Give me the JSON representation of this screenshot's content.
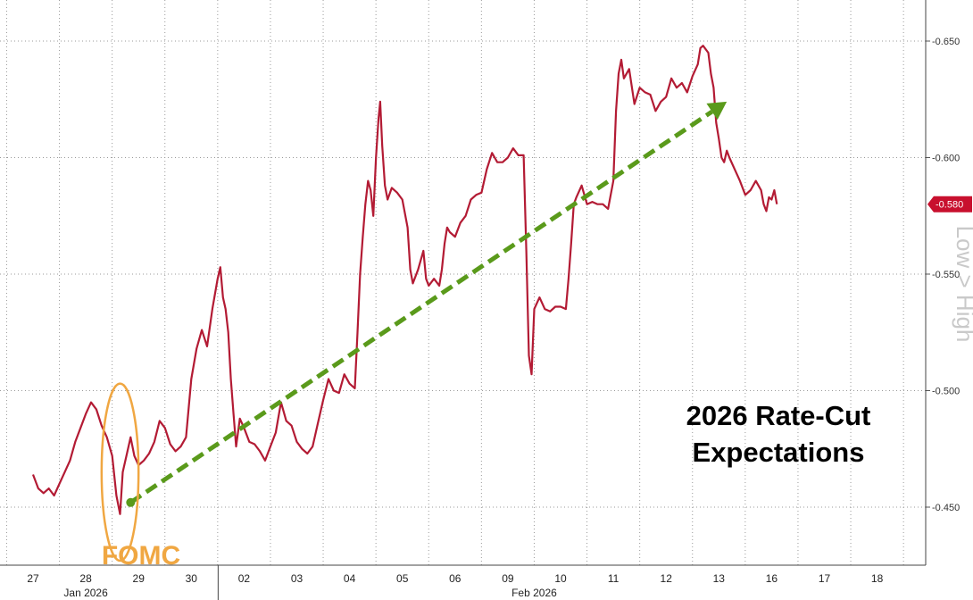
{
  "chart_data": {
    "type": "line",
    "title": [
      "2026 Rate-Cut",
      "Expectations"
    ],
    "annotation": "FOMC",
    "side_label": "Low > High",
    "last_value_label": "-0.580",
    "y_axis": {
      "min": -0.475,
      "max": -0.665,
      "inverted": true,
      "ticks": [
        -0.65,
        -0.6,
        -0.55,
        -0.5,
        -0.45
      ],
      "tick_labels": [
        "-0.650",
        "-0.600",
        "-0.550",
        "-0.500",
        "-0.450"
      ],
      "position": "right"
    },
    "x_axis": {
      "days": [
        "27",
        "28",
        "29",
        "30",
        "02",
        "03",
        "04",
        "05",
        "06",
        "09",
        "10",
        "11",
        "12",
        "13",
        "16",
        "17",
        "18"
      ],
      "months": [
        {
          "label": "Jan 2026",
          "day_index": 1
        },
        {
          "label": "Feb 2026",
          "day_index": 9.5
        }
      ]
    },
    "grid": true,
    "colors": {
      "series": "#b31b34",
      "trend": "#5a9a1b",
      "annotation": "#f0a742",
      "last_label_bg": "#c8102e"
    },
    "series": [
      {
        "points": [
          [
            0.0,
            -0.464
          ],
          [
            0.1,
            -0.458
          ],
          [
            0.2,
            -0.456
          ],
          [
            0.3,
            -0.458
          ],
          [
            0.4,
            -0.455
          ],
          [
            0.5,
            -0.46
          ],
          [
            0.6,
            -0.465
          ],
          [
            0.7,
            -0.47
          ],
          [
            0.8,
            -0.478
          ],
          [
            0.9,
            -0.484
          ],
          [
            1.0,
            -0.49
          ],
          [
            1.1,
            -0.495
          ],
          [
            1.2,
            -0.492
          ],
          [
            1.3,
            -0.485
          ],
          [
            1.4,
            -0.48
          ],
          [
            1.5,
            -0.472
          ],
          [
            1.58,
            -0.455
          ],
          [
            1.65,
            -0.447
          ],
          [
            1.7,
            -0.465
          ],
          [
            1.78,
            -0.473
          ],
          [
            1.85,
            -0.48
          ],
          [
            1.92,
            -0.472
          ],
          [
            2.0,
            -0.468
          ],
          [
            2.1,
            -0.47
          ],
          [
            2.2,
            -0.473
          ],
          [
            2.3,
            -0.478
          ],
          [
            2.4,
            -0.487
          ],
          [
            2.5,
            -0.484
          ],
          [
            2.6,
            -0.477
          ],
          [
            2.7,
            -0.474
          ],
          [
            2.8,
            -0.476
          ],
          [
            2.9,
            -0.48
          ],
          [
            3.0,
            -0.505
          ],
          [
            3.1,
            -0.518
          ],
          [
            3.2,
            -0.526
          ],
          [
            3.3,
            -0.519
          ],
          [
            3.4,
            -0.535
          ],
          [
            3.5,
            -0.548
          ],
          [
            3.55,
            -0.553
          ],
          [
            3.6,
            -0.54
          ],
          [
            3.65,
            -0.535
          ],
          [
            3.7,
            -0.525
          ],
          [
            3.75,
            -0.505
          ],
          [
            3.8,
            -0.49
          ],
          [
            3.85,
            -0.476
          ],
          [
            3.92,
            -0.488
          ],
          [
            4.0,
            -0.484
          ],
          [
            4.1,
            -0.478
          ],
          [
            4.2,
            -0.477
          ],
          [
            4.3,
            -0.474
          ],
          [
            4.4,
            -0.47
          ],
          [
            4.5,
            -0.476
          ],
          [
            4.6,
            -0.482
          ],
          [
            4.7,
            -0.495
          ],
          [
            4.8,
            -0.487
          ],
          [
            4.9,
            -0.485
          ],
          [
            5.0,
            -0.478
          ],
          [
            5.1,
            -0.475
          ],
          [
            5.2,
            -0.473
          ],
          [
            5.3,
            -0.476
          ],
          [
            5.4,
            -0.486
          ],
          [
            5.5,
            -0.496
          ],
          [
            5.6,
            -0.505
          ],
          [
            5.7,
            -0.5
          ],
          [
            5.8,
            -0.499
          ],
          [
            5.9,
            -0.507
          ],
          [
            6.0,
            -0.503
          ],
          [
            6.1,
            -0.501
          ],
          [
            6.15,
            -0.525
          ],
          [
            6.2,
            -0.55
          ],
          [
            6.25,
            -0.566
          ],
          [
            6.3,
            -0.58
          ],
          [
            6.35,
            -0.59
          ],
          [
            6.4,
            -0.586
          ],
          [
            6.45,
            -0.575
          ],
          [
            6.5,
            -0.6
          ],
          [
            6.55,
            -0.617
          ],
          [
            6.58,
            -0.624
          ],
          [
            6.62,
            -0.605
          ],
          [
            6.67,
            -0.588
          ],
          [
            6.72,
            -0.582
          ],
          [
            6.8,
            -0.587
          ],
          [
            6.9,
            -0.585
          ],
          [
            7.0,
            -0.582
          ],
          [
            7.1,
            -0.57
          ],
          [
            7.15,
            -0.552
          ],
          [
            7.2,
            -0.546
          ],
          [
            7.3,
            -0.552
          ],
          [
            7.4,
            -0.56
          ],
          [
            7.45,
            -0.548
          ],
          [
            7.5,
            -0.545
          ],
          [
            7.6,
            -0.548
          ],
          [
            7.7,
            -0.545
          ],
          [
            7.75,
            -0.552
          ],
          [
            7.8,
            -0.563
          ],
          [
            7.85,
            -0.57
          ],
          [
            7.9,
            -0.568
          ],
          [
            8.0,
            -0.566
          ],
          [
            8.1,
            -0.572
          ],
          [
            8.2,
            -0.575
          ],
          [
            8.3,
            -0.582
          ],
          [
            8.4,
            -0.584
          ],
          [
            8.5,
            -0.585
          ],
          [
            8.6,
            -0.595
          ],
          [
            8.7,
            -0.602
          ],
          [
            8.8,
            -0.598
          ],
          [
            8.9,
            -0.598
          ],
          [
            9.0,
            -0.6
          ],
          [
            9.1,
            -0.604
          ],
          [
            9.2,
            -0.601
          ],
          [
            9.3,
            -0.601
          ],
          [
            9.35,
            -0.56
          ],
          [
            9.4,
            -0.515
          ],
          [
            9.45,
            -0.507
          ],
          [
            9.5,
            -0.535
          ],
          [
            9.6,
            -0.54
          ],
          [
            9.7,
            -0.535
          ],
          [
            9.8,
            -0.534
          ],
          [
            9.9,
            -0.536
          ],
          [
            10.0,
            -0.536
          ],
          [
            10.1,
            -0.535
          ],
          [
            10.15,
            -0.548
          ],
          [
            10.2,
            -0.563
          ],
          [
            10.25,
            -0.58
          ],
          [
            10.3,
            -0.583
          ],
          [
            10.4,
            -0.588
          ],
          [
            10.5,
            -0.58
          ],
          [
            10.6,
            -0.581
          ],
          [
            10.7,
            -0.58
          ],
          [
            10.8,
            -0.58
          ],
          [
            10.9,
            -0.578
          ],
          [
            11.0,
            -0.59
          ],
          [
            11.05,
            -0.62
          ],
          [
            11.1,
            -0.636
          ],
          [
            11.15,
            -0.642
          ],
          [
            11.2,
            -0.634
          ],
          [
            11.3,
            -0.638
          ],
          [
            11.4,
            -0.623
          ],
          [
            11.5,
            -0.63
          ],
          [
            11.6,
            -0.628
          ],
          [
            11.7,
            -0.627
          ],
          [
            11.8,
            -0.62
          ],
          [
            11.9,
            -0.624
          ],
          [
            12.0,
            -0.626
          ],
          [
            12.1,
            -0.634
          ],
          [
            12.2,
            -0.63
          ],
          [
            12.3,
            -0.632
          ],
          [
            12.4,
            -0.628
          ],
          [
            12.5,
            -0.635
          ],
          [
            12.6,
            -0.64
          ],
          [
            12.65,
            -0.647
          ],
          [
            12.7,
            -0.648
          ],
          [
            12.8,
            -0.645
          ],
          [
            12.85,
            -0.636
          ],
          [
            12.9,
            -0.63
          ],
          [
            12.95,
            -0.615
          ],
          [
            13.0,
            -0.608
          ],
          [
            13.05,
            -0.6
          ],
          [
            13.1,
            -0.598
          ],
          [
            13.15,
            -0.603
          ],
          [
            13.2,
            -0.6
          ],
          [
            13.3,
            -0.595
          ],
          [
            13.4,
            -0.59
          ],
          [
            13.5,
            -0.584
          ],
          [
            13.6,
            -0.586
          ],
          [
            13.7,
            -0.59
          ],
          [
            13.8,
            -0.586
          ],
          [
            13.85,
            -0.58
          ],
          [
            13.9,
            -0.577
          ],
          [
            13.95,
            -0.583
          ],
          [
            14.0,
            -0.582
          ],
          [
            14.05,
            -0.586
          ],
          [
            14.1,
            -0.58
          ]
        ]
      }
    ],
    "trend_arrow": {
      "from": [
        1.85,
        -0.452
      ],
      "to": [
        13.15,
        -0.624
      ]
    },
    "fomc_ellipse": {
      "center": [
        1.65,
        -0.465
      ],
      "rx_days": 0.35,
      "ry_value": 0.038
    }
  }
}
